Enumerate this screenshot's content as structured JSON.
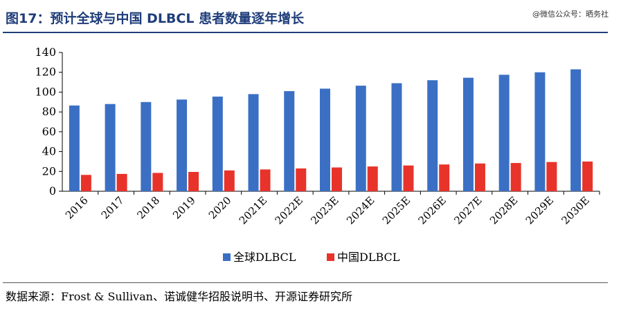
{
  "header": {
    "title": "图17：预计全球与中国 DLBCL 患者数量逐年增长",
    "watermark": "@微信公众号：晒务社"
  },
  "footer": {
    "source": "数据来源：Frost & Sullivan、诺诚健华招股说明书、开源证券研究所"
  },
  "chart_data": {
    "type": "bar",
    "title": "",
    "xlabel": "",
    "ylabel": "",
    "categories": [
      "2016",
      "2017",
      "2018",
      "2019",
      "2020",
      "2021E",
      "2022E",
      "2023E",
      "2024E",
      "2025E",
      "2026E",
      "2027E",
      "2028E",
      "2029E",
      "2030E"
    ],
    "series": [
      {
        "name": "全球DLBCL",
        "color": "#3a6fc4",
        "values": [
          86.5,
          88,
          90,
          92.5,
          95.5,
          98,
          101,
          103.5,
          106.5,
          109,
          112,
          114.5,
          117.5,
          120,
          123
        ]
      },
      {
        "name": "中国DLBCL",
        "color": "#e8332a",
        "values": [
          16.5,
          17.5,
          18.5,
          19.5,
          21,
          22,
          23,
          24,
          25,
          26,
          27,
          28,
          28.5,
          29.5,
          30
        ]
      }
    ],
    "ylim": [
      0,
      140
    ],
    "yticks": [
      0,
      20,
      40,
      60,
      80,
      100,
      120,
      140
    ],
    "grid": false,
    "legend_position": "bottom"
  }
}
